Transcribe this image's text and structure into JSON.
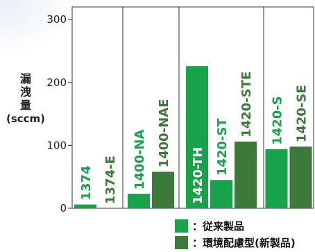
{
  "chart_data": {
    "type": "bar",
    "ylabel": "漏洩量",
    "yunit": "(sccm)",
    "ylim": [
      0,
      320
    ],
    "yticks": [
      0,
      100,
      200,
      300
    ],
    "groups": [
      {
        "name": "group-1",
        "bars": [
          {
            "label": "1374",
            "value": 6,
            "series": "conventional"
          },
          {
            "label": "1374-E",
            "value": 0,
            "series": "eco"
          }
        ]
      },
      {
        "name": "group-2",
        "bars": [
          {
            "label": "1400-NA",
            "value": 23,
            "series": "conventional"
          },
          {
            "label": "1400-NAE",
            "value": 58,
            "series": "eco"
          }
        ]
      },
      {
        "name": "group-3",
        "bars": [
          {
            "label": "1420-TH",
            "value": 226,
            "series": "conventional"
          },
          {
            "label": "1420-ST",
            "value": 45,
            "series": "conventional"
          },
          {
            "label": "1420-STE",
            "value": 106,
            "series": "eco"
          }
        ]
      },
      {
        "name": "group-4",
        "bars": [
          {
            "label": "1420-S",
            "value": 94,
            "series": "conventional"
          },
          {
            "label": "1420-SE",
            "value": 98,
            "series": "eco"
          }
        ]
      }
    ],
    "series": [
      {
        "key": "conventional",
        "name": "：従来製品",
        "color": "#16a34a"
      },
      {
        "key": "eco",
        "name": "：環境配慮型(新製品)",
        "color": "#3d7a3a"
      }
    ]
  }
}
